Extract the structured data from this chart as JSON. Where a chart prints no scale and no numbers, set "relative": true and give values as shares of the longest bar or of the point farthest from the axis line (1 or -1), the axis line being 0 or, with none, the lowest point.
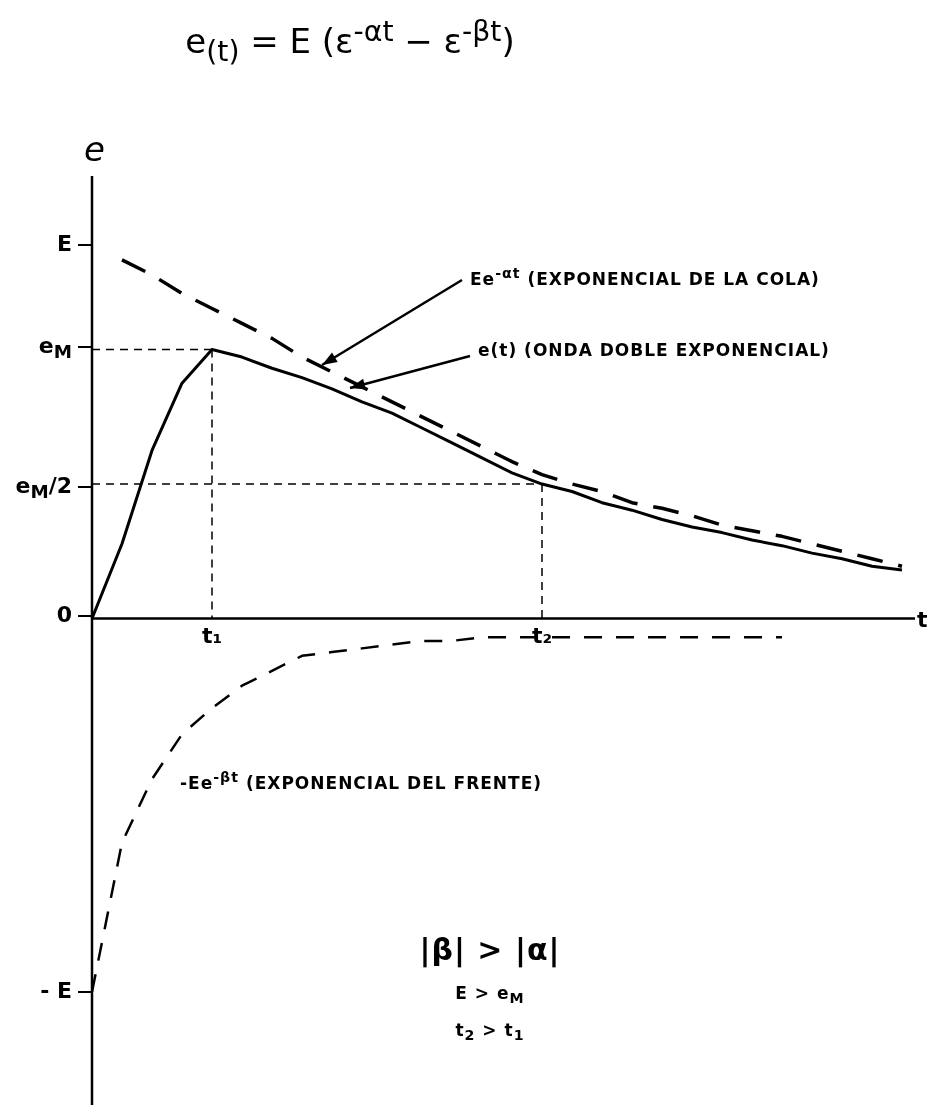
{
  "chart_data": {
    "type": "line",
    "relative": true,
    "title": "e$_{(t)}$ = E (ε$^{-αt}$ − ε$^{-βt}$)",
    "xlabel": "t",
    "ylabel": "e",
    "categories": [
      null,
      null,
      null,
      null,
      "t₁",
      null,
      null,
      null,
      null,
      null,
      null,
      null,
      null,
      null,
      null,
      "t₂",
      null,
      null,
      null,
      null,
      null,
      null,
      null,
      null,
      null,
      null,
      null,
      null
    ],
    "grid": false,
    "legend": false,
    "marker": "none",
    "series": [
      {
        "color": "#000000",
        "line_style": "solid",
        "values": [
          0,
          0.2,
          0.45,
          0.63,
          0.72,
          0.7,
          0.67,
          0.645,
          0.615,
          0.58,
          0.55,
          0.51,
          0.47,
          0.43,
          0.39,
          0.36,
          0.34,
          0.31,
          0.29,
          0.265,
          0.245,
          0.23,
          0.21,
          0.195,
          0.175,
          0.16,
          0.14,
          0.13
        ]
      },
      {
        "color": "#000000",
        "line_style": "dashed",
        "values": [
          null,
          0.96,
          0.92,
          0.87,
          0.83,
          0.79,
          0.75,
          0.7,
          0.66,
          0.62,
          0.58,
          0.54,
          0.5,
          0.46,
          0.42,
          0.385,
          0.36,
          0.34,
          0.31,
          0.295,
          0.275,
          0.25,
          0.235,
          0.22,
          0.2,
          0.18,
          0.16,
          0.14
        ]
      },
      {
        "color": "#000000",
        "line_style": "dashed",
        "values": [
          -1,
          -0.6,
          -0.43,
          -0.31,
          -0.24,
          -0.18,
          -0.14,
          -0.1,
          -0.09,
          -0.08,
          -0.07,
          -0.06,
          -0.06,
          -0.05,
          -0.05,
          -0.05,
          -0.05,
          -0.05,
          -0.05,
          -0.05,
          -0.05,
          -0.05,
          -0.05,
          -0.05,
          null,
          null,
          null,
          null
        ]
      },
      {
        "color": "#000000",
        "line_style": "dashed",
        "values": [
          0.72,
          0.72,
          0.72,
          0.72,
          0.72,
          null,
          null,
          null,
          null,
          null,
          null,
          null,
          null,
          null,
          null,
          null,
          null,
          null,
          null,
          null,
          null,
          null,
          null,
          null,
          null,
          null,
          null,
          null
        ]
      },
      {
        "color": "#000000",
        "line_style": "dashed",
        "values": [
          0.36,
          0.36,
          0.36,
          0.36,
          0.36,
          0.36,
          0.36,
          0.36,
          0.36,
          0.36,
          0.36,
          0.36,
          0.36,
          0.36,
          0.36,
          0.36,
          null,
          null,
          null,
          null,
          null,
          null,
          null,
          null,
          null,
          null,
          null,
          null
        ]
      }
    ],
    "ref_lines": [
      {
        "axis": "x",
        "value": "t₁",
        "color": "#000000",
        "line_style": "dashed"
      },
      {
        "axis": "x",
        "value": "t₂",
        "color": "#000000",
        "line_style": "dashed"
      }
    ],
    "annotations": [
      "E",
      "e$_{M}$",
      "e$_{M}$/2",
      "0",
      "- E",
      "Ee$^{-αt}$ (EXPONENCIAL DE LA COLA)",
      "e(t) (ONDA DOBLE EXPONENCIAL)",
      "-Ee$^{-βt}$ (EXPONENCIAL DEL FRENTE)",
      "|β| > |α|",
      "E > e$_{M}$",
      "t$_{2}$ > t$_{1}$"
    ]
  }
}
